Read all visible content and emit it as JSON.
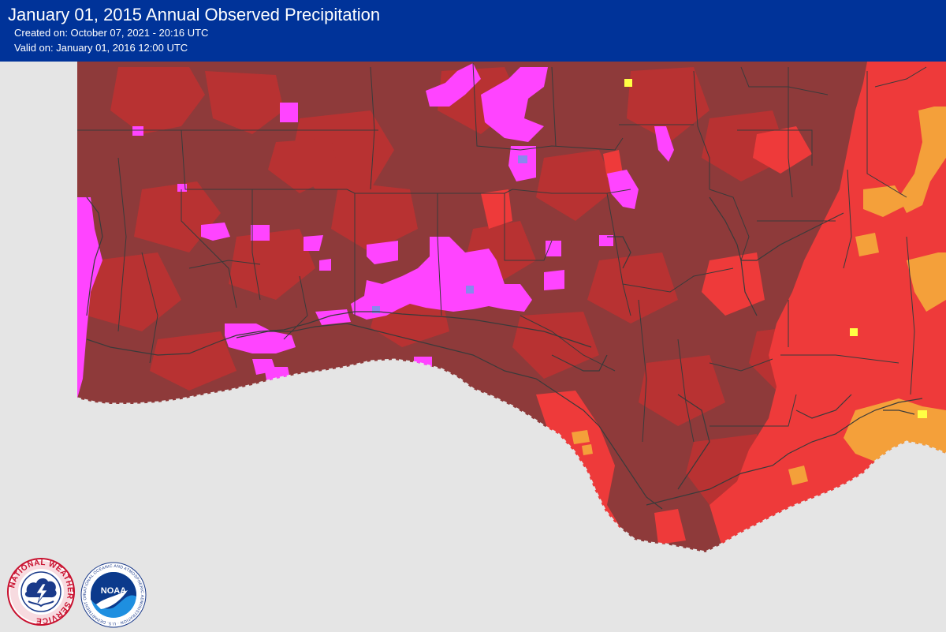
{
  "header": {
    "title": "January 01, 2015 Annual Observed Precipitation",
    "created": "Created on: October 07, 2021 - 20:16 UTC",
    "valid": "Valid on: January 01, 2016 12:00 UTC"
  },
  "map": {
    "colors": {
      "background": "#e5e5e5",
      "dark_red": "#8e3a3a",
      "red": "#b83232",
      "bright_red": "#ee3a3a",
      "magenta": "#ff44ff",
      "orange": "#f4a03a",
      "yellow": "#ffff44",
      "periwinkle": "#8888ee",
      "boundary": "#3a3a3a"
    }
  },
  "logos": {
    "nws": {
      "icon": "nws-logo",
      "text": "NATIONAL WEATHER SERVICE"
    },
    "noaa": {
      "icon": "noaa-logo",
      "text": "NOAA",
      "ring_text": "NATIONAL OCEANIC AND ATMOSPHERIC ADMINISTRATION · U.S. DEPARTMENT OF COMMERCE"
    }
  }
}
